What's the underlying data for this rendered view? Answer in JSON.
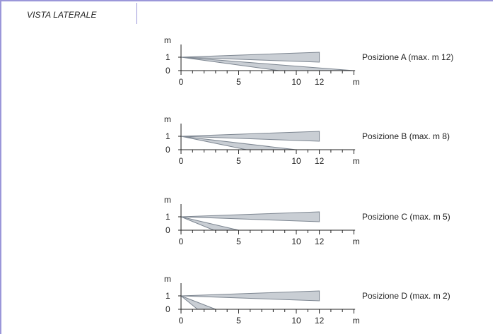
{
  "header": {
    "title": "VISTA LATERALE"
  },
  "diagram": {
    "y_unit": "m",
    "x_unit": "m",
    "y_ticks": [
      "1",
      "0"
    ],
    "x_ticks": [
      "0",
      "5",
      "10",
      "12"
    ],
    "colors": {
      "beam_fill": "#c9ced4",
      "beam_stroke": "#7d8691",
      "axis": "#222222",
      "frame": "#9b97d9"
    },
    "panels": [
      {
        "label": "Posizione  A (max. m 12)",
        "upper_beam_end_m": 12,
        "lower_beam_end_m": 15
      },
      {
        "label": "Posizione  B (max. m 8)",
        "upper_beam_end_m": 12,
        "lower_beam_end_m": 10
      },
      {
        "label": "Posizione  C (max. m 5)",
        "upper_beam_end_m": 12,
        "lower_beam_end_m": 5
      },
      {
        "label": "Posizione  D (max. m 2)",
        "upper_beam_end_m": 12,
        "lower_beam_end_m": 3
      }
    ]
  }
}
